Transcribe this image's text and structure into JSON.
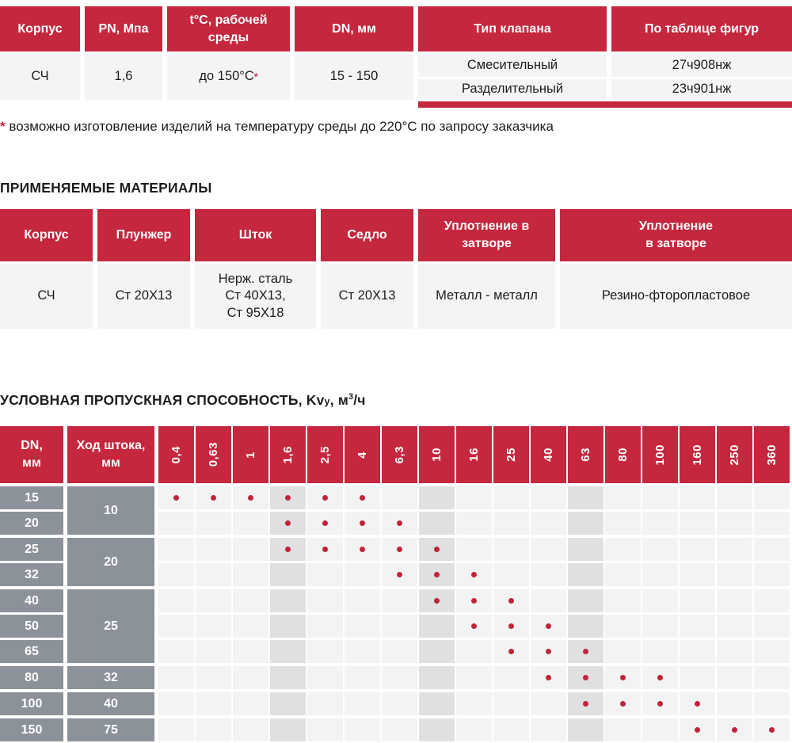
{
  "colors": {
    "header_red": "#C4273E",
    "cell_bg": "#F4F4F4",
    "shaded_cell_bg": "#E0E0E0",
    "gray_cell": "#8B929A",
    "dot_red": "#C0243A",
    "text": "#1D1D1B"
  },
  "spec": {
    "headers": [
      "Корпус",
      "PN, Мпа",
      "t°C, рабочей\nсреды",
      "DN, мм",
      "Тип клапана",
      "По таблице фигур"
    ],
    "row": {
      "korpus": "СЧ",
      "pn": "1,6",
      "temp": "до 150°C",
      "temp_mark": "*",
      "dn": "15 - 150"
    },
    "valve_types": [
      {
        "type": "Смесительный",
        "figure": "27ч908нж"
      },
      {
        "type": "Разделительный",
        "figure": "23ч901нж"
      }
    ]
  },
  "footnote": {
    "mark": "*",
    "text": " возможно изготовление изделий на температуру среды до 220°C по запросу заказчика"
  },
  "materials": {
    "title": "ПРИМЕНЯЕМЫЕ МАТЕРИАЛЫ",
    "headers": [
      "Корпус",
      "Плунжер",
      "Шток",
      "Седло",
      "Уплотнение в\nзатворе",
      "Уплотнение\nв затворе"
    ],
    "row": [
      "СЧ",
      "Ст 20Х13",
      "Нерж. сталь\nСт 40Х13,\nСт 95Х18",
      "Ст 20Х13",
      "Металл - металл",
      "Резино-фторопластовое"
    ]
  },
  "kv": {
    "title_main": "УСЛОВНАЯ ПРОПУСКНАЯ СПОСОБНОСТЬ, Kv",
    "title_sub": "у",
    "title_m": ", м",
    "title_sup": "3",
    "title_tail": "/ч",
    "col_dn": "DN,\nмм",
    "col_stroke": "Ход штока,\nмм",
    "kv_values": [
      "0,4",
      "0,63",
      "1",
      "1,6",
      "2,5",
      "4",
      "6,3",
      "10",
      "16",
      "25",
      "40",
      "63",
      "80",
      "100",
      "160",
      "250",
      "360"
    ],
    "shaded_cols": [
      3,
      7,
      11
    ],
    "groups": [
      {
        "stroke": "10",
        "rows": [
          {
            "dn": "15",
            "dots": [
              0,
              1,
              2,
              3,
              4,
              5
            ]
          },
          {
            "dn": "20",
            "dots": [
              3,
              4,
              5,
              6
            ]
          }
        ]
      },
      {
        "stroke": "20",
        "rows": [
          {
            "dn": "25",
            "dots": [
              3,
              4,
              5,
              6,
              7
            ]
          },
          {
            "dn": "32",
            "dots": [
              6,
              7,
              8
            ]
          }
        ]
      },
      {
        "stroke": "25",
        "rows": [
          {
            "dn": "40",
            "dots": [
              7,
              8,
              9
            ]
          },
          {
            "dn": "50",
            "dots": [
              8,
              9,
              10
            ]
          },
          {
            "dn": "65",
            "dots": [
              9,
              10,
              11
            ]
          }
        ]
      },
      {
        "stroke": "32",
        "rows": [
          {
            "dn": "80",
            "dots": [
              10,
              11,
              12,
              13
            ]
          }
        ]
      },
      {
        "stroke": "40",
        "rows": [
          {
            "dn": "100",
            "dots": [
              11,
              12,
              13,
              14
            ]
          }
        ]
      },
      {
        "stroke": "75",
        "rows": [
          {
            "dn": "150",
            "dots": [
              14,
              15,
              16
            ]
          }
        ]
      }
    ]
  }
}
